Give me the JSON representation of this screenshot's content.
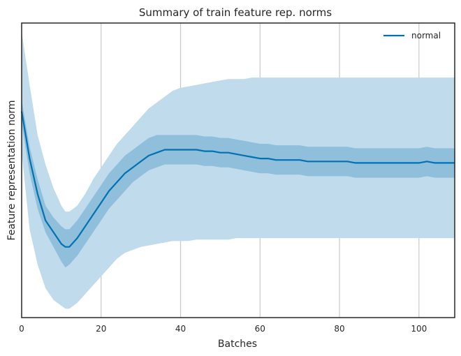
{
  "chart_data": {
    "type": "line",
    "title": "Summary of train feature rep. norms",
    "xlabel": "Batches",
    "ylabel": "Feature representation norm",
    "xlim": [
      0,
      109
    ],
    "ylim": [
      0,
      1
    ],
    "xticks": [
      0,
      20,
      40,
      60,
      80,
      100
    ],
    "xtick_labels": [
      "0",
      "20",
      "40",
      "60",
      "80",
      "100"
    ],
    "yticks_shown": false,
    "grid": "vertical",
    "legend_position": "top-right",
    "colors": {
      "line": "#0072b2",
      "inner_band": "#8fbfdb",
      "outer_band": "#c0dbec",
      "grid": "#c8c8c8",
      "axes": "#262626"
    },
    "series": [
      {
        "name": "normal",
        "x": [
          0,
          2,
          4,
          6,
          8,
          10,
          11,
          12,
          14,
          16,
          18,
          20,
          22,
          24,
          26,
          28,
          30,
          32,
          34,
          36,
          38,
          40,
          42,
          44,
          46,
          48,
          50,
          52,
          54,
          56,
          58,
          60,
          62,
          64,
          66,
          68,
          70,
          72,
          74,
          76,
          78,
          80,
          82,
          84,
          86,
          88,
          90,
          92,
          94,
          96,
          98,
          100,
          102,
          104,
          106,
          108,
          109
        ],
        "mean": [
          0.7,
          0.54,
          0.42,
          0.33,
          0.29,
          0.25,
          0.24,
          0.24,
          0.27,
          0.31,
          0.35,
          0.39,
          0.43,
          0.46,
          0.49,
          0.51,
          0.53,
          0.55,
          0.56,
          0.57,
          0.57,
          0.57,
          0.57,
          0.57,
          0.565,
          0.565,
          0.56,
          0.56,
          0.555,
          0.55,
          0.545,
          0.54,
          0.54,
          0.535,
          0.535,
          0.535,
          0.535,
          0.53,
          0.53,
          0.53,
          0.53,
          0.53,
          0.53,
          0.525,
          0.525,
          0.525,
          0.525,
          0.525,
          0.525,
          0.525,
          0.525,
          0.525,
          0.53,
          0.525,
          0.525,
          0.525,
          0.525
        ],
        "inner_lower": [
          0.66,
          0.49,
          0.37,
          0.29,
          0.24,
          0.19,
          0.17,
          0.18,
          0.21,
          0.25,
          0.29,
          0.33,
          0.37,
          0.4,
          0.43,
          0.46,
          0.48,
          0.5,
          0.51,
          0.52,
          0.52,
          0.52,
          0.52,
          0.52,
          0.515,
          0.515,
          0.51,
          0.51,
          0.505,
          0.5,
          0.495,
          0.49,
          0.49,
          0.485,
          0.485,
          0.485,
          0.485,
          0.48,
          0.48,
          0.48,
          0.48,
          0.48,
          0.48,
          0.475,
          0.475,
          0.475,
          0.475,
          0.475,
          0.475,
          0.475,
          0.475,
          0.475,
          0.48,
          0.475,
          0.475,
          0.475,
          0.475
        ],
        "inner_upper": [
          0.74,
          0.58,
          0.47,
          0.38,
          0.34,
          0.31,
          0.3,
          0.3,
          0.33,
          0.37,
          0.41,
          0.45,
          0.49,
          0.52,
          0.55,
          0.57,
          0.59,
          0.61,
          0.62,
          0.62,
          0.62,
          0.62,
          0.62,
          0.62,
          0.615,
          0.615,
          0.61,
          0.61,
          0.605,
          0.6,
          0.595,
          0.59,
          0.59,
          0.585,
          0.585,
          0.585,
          0.585,
          0.58,
          0.58,
          0.58,
          0.58,
          0.58,
          0.58,
          0.575,
          0.575,
          0.575,
          0.575,
          0.575,
          0.575,
          0.575,
          0.575,
          0.575,
          0.58,
          0.575,
          0.575,
          0.575,
          0.575
        ],
        "outer_lower": [
          0.56,
          0.3,
          0.18,
          0.1,
          0.06,
          0.04,
          0.03,
          0.03,
          0.05,
          0.08,
          0.11,
          0.14,
          0.17,
          0.2,
          0.22,
          0.23,
          0.24,
          0.245,
          0.25,
          0.255,
          0.26,
          0.26,
          0.26,
          0.265,
          0.265,
          0.265,
          0.265,
          0.265,
          0.27,
          0.27,
          0.27,
          0.27,
          0.27,
          0.27,
          0.27,
          0.27,
          0.27,
          0.27,
          0.27,
          0.27,
          0.27,
          0.27,
          0.27,
          0.27,
          0.27,
          0.27,
          0.27,
          0.27,
          0.27,
          0.27,
          0.27,
          0.27,
          0.27,
          0.27,
          0.27,
          0.27,
          0.27
        ],
        "outer_upper": [
          0.97,
          0.79,
          0.62,
          0.52,
          0.44,
          0.38,
          0.36,
          0.36,
          0.38,
          0.42,
          0.47,
          0.51,
          0.55,
          0.59,
          0.62,
          0.65,
          0.68,
          0.71,
          0.73,
          0.75,
          0.77,
          0.78,
          0.785,
          0.79,
          0.795,
          0.8,
          0.805,
          0.81,
          0.81,
          0.81,
          0.815,
          0.815,
          0.815,
          0.815,
          0.815,
          0.815,
          0.815,
          0.815,
          0.815,
          0.815,
          0.815,
          0.815,
          0.815,
          0.815,
          0.815,
          0.815,
          0.815,
          0.815,
          0.815,
          0.815,
          0.815,
          0.815,
          0.815,
          0.815,
          0.815,
          0.815,
          0.815
        ]
      }
    ]
  }
}
